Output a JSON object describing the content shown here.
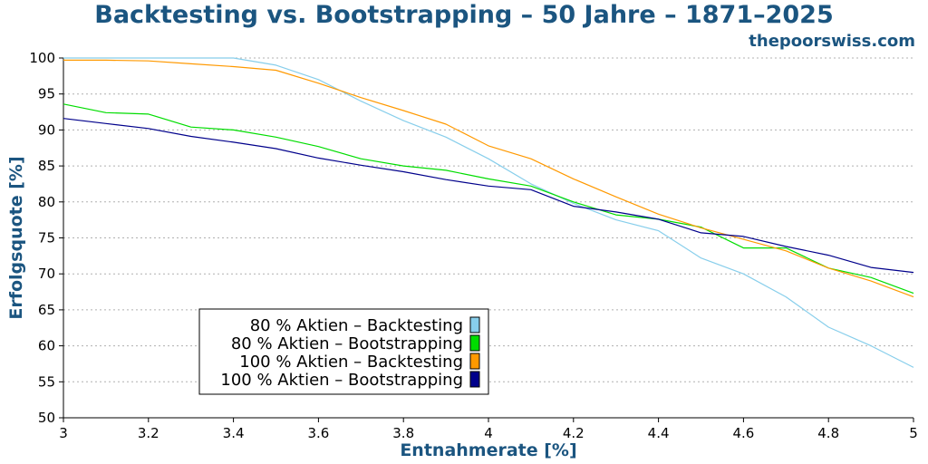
{
  "page": {
    "title": "Backtesting vs. Bootstrapping – 50 Jahre – 1871–2025",
    "source": "thepoorswiss.com"
  },
  "chart_data": {
    "type": "line",
    "title": "Backtesting vs. Bootstrapping – 50 Jahre – 1871–2025",
    "xlabel": "Entnahmerate [%]",
    "ylabel": "Erfolgsquote [%]",
    "xlim": [
      3,
      5
    ],
    "ylim": [
      50,
      100
    ],
    "xticks": [
      "3",
      "3.2",
      "3.4",
      "3.6",
      "3.8",
      "4",
      "4.2",
      "4.4",
      "4.6",
      "4.8",
      "5"
    ],
    "yticks": [
      "50",
      "55",
      "60",
      "65",
      "70",
      "75",
      "80",
      "85",
      "90",
      "95",
      "100"
    ],
    "grid": "horizontal dotted",
    "legend_position": "lower-left",
    "x": [
      3.0,
      3.1,
      3.2,
      3.3,
      3.4,
      3.5,
      3.6,
      3.7,
      3.8,
      3.9,
      4.0,
      4.1,
      4.2,
      4.3,
      4.4,
      4.5,
      4.6,
      4.7,
      4.8,
      4.9,
      5.0
    ],
    "series": [
      {
        "name": "80 % Aktien – Backtesting",
        "color": "#87ceeb",
        "values": [
          100,
          100,
          100,
          100,
          100,
          99,
          97,
          94,
          91.3,
          89,
          86,
          82.5,
          79.8,
          77.5,
          76,
          72.2,
          70,
          66.8,
          62.6,
          60,
          57
        ]
      },
      {
        "name": "80 % Aktien – Bootstrapping",
        "color": "#00dd00",
        "values": [
          93.6,
          92.4,
          92.2,
          90.4,
          90,
          89,
          87.7,
          86,
          85,
          84.4,
          83.2,
          82.2,
          80,
          78.2,
          77.6,
          76.5,
          73.6,
          73.6,
          70.8,
          69.5,
          67.3
        ]
      },
      {
        "name": "100 % Aktien – Backtesting",
        "color": "#ff9900",
        "values": [
          99.7,
          99.7,
          99.6,
          99.2,
          98.8,
          98.3,
          96.5,
          94.5,
          92.7,
          90.8,
          87.8,
          86,
          83.2,
          80.7,
          78.3,
          76.4,
          74.8,
          73.2,
          70.8,
          69,
          66.8
        ]
      },
      {
        "name": "100 % Aktien – Bootstrapping",
        "color": "#00008b",
        "values": [
          91.6,
          90.9,
          90.2,
          89.1,
          88.3,
          87.4,
          86.1,
          85.1,
          84.2,
          83.1,
          82.2,
          81.7,
          79.4,
          78.6,
          77.6,
          75.7,
          75.2,
          73.8,
          72.6,
          70.9,
          70.2
        ]
      }
    ]
  }
}
